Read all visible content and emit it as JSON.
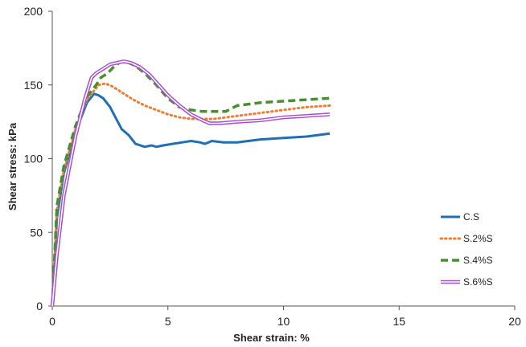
{
  "chart_data": {
    "type": "line",
    "title": "",
    "xlabel": "Shear strain: %",
    "ylabel": "Shear stress: kPa",
    "xlim": [
      0,
      20
    ],
    "ylim": [
      0,
      200
    ],
    "xticks": [
      0,
      5,
      10,
      15,
      20
    ],
    "yticks": [
      0,
      50,
      100,
      150,
      200
    ],
    "grid": false,
    "legend_position": "right",
    "series": [
      {
        "name": "C.S",
        "color": "#1f6fb5",
        "style": "solid",
        "x": [
          0,
          0.2,
          0.5,
          1.0,
          1.5,
          1.8,
          2.0,
          2.2,
          2.5,
          2.8,
          3.0,
          3.3,
          3.6,
          4.0,
          4.3,
          4.5,
          4.8,
          5.2,
          5.6,
          6.0,
          6.4,
          6.6,
          6.9,
          7.4,
          8,
          9,
          10,
          11,
          12
        ],
        "y": [
          0,
          60,
          90,
          118,
          138,
          144,
          143,
          141,
          135,
          126,
          120,
          116,
          110,
          108,
          109,
          108,
          109,
          110,
          111,
          112,
          111,
          110,
          112,
          111,
          111,
          113,
          114,
          115,
          117
        ]
      },
      {
        "name": "S.2%S",
        "color": "#ed7d31",
        "style": "dotted",
        "x": [
          0,
          0.2,
          0.5,
          1.0,
          1.5,
          1.8,
          2.0,
          2.3,
          2.6,
          3.0,
          3.5,
          4.0,
          4.5,
          5.0,
          5.5,
          6.0,
          6.5,
          7.0,
          8,
          9,
          10,
          11,
          12
        ],
        "y": [
          0,
          65,
          92,
          120,
          140,
          146,
          150,
          151,
          149,
          145,
          140,
          136,
          133,
          130,
          128,
          127,
          127,
          127,
          129,
          131,
          133,
          135,
          136
        ]
      },
      {
        "name": "S.4%S",
        "color": "#4a8f2f",
        "style": "dashed",
        "x": [
          0,
          0.2,
          0.5,
          1.0,
          1.5,
          1.9,
          2.1,
          2.4,
          2.7,
          3.0,
          3.3,
          3.6,
          4.0,
          4.5,
          5.0,
          5.5,
          6.0,
          6.5,
          7.0,
          7.5,
          8,
          9,
          10,
          11,
          12
        ],
        "y": [
          0,
          68,
          95,
          122,
          142,
          150,
          155,
          158,
          163,
          166,
          165,
          163,
          158,
          150,
          141,
          135,
          133,
          132,
          132,
          132,
          136,
          138,
          139,
          140,
          141
        ]
      },
      {
        "name": "S.6%S",
        "color": "#a64dcf",
        "style": "double",
        "x": [
          0,
          0.2,
          0.5,
          1.0,
          1.4,
          1.7,
          1.9,
          2.2,
          2.5,
          2.8,
          3.1,
          3.4,
          3.8,
          4.2,
          4.6,
          5.0,
          5.5,
          6.0,
          6.5,
          6.8,
          7.2,
          8,
          9,
          10,
          11,
          12
        ],
        "y": [
          0,
          35,
          75,
          115,
          140,
          155,
          158,
          161,
          164,
          165,
          166,
          165,
          162,
          157,
          150,
          143,
          136,
          130,
          126,
          124,
          124,
          125,
          126,
          128,
          129,
          130
        ]
      }
    ]
  }
}
